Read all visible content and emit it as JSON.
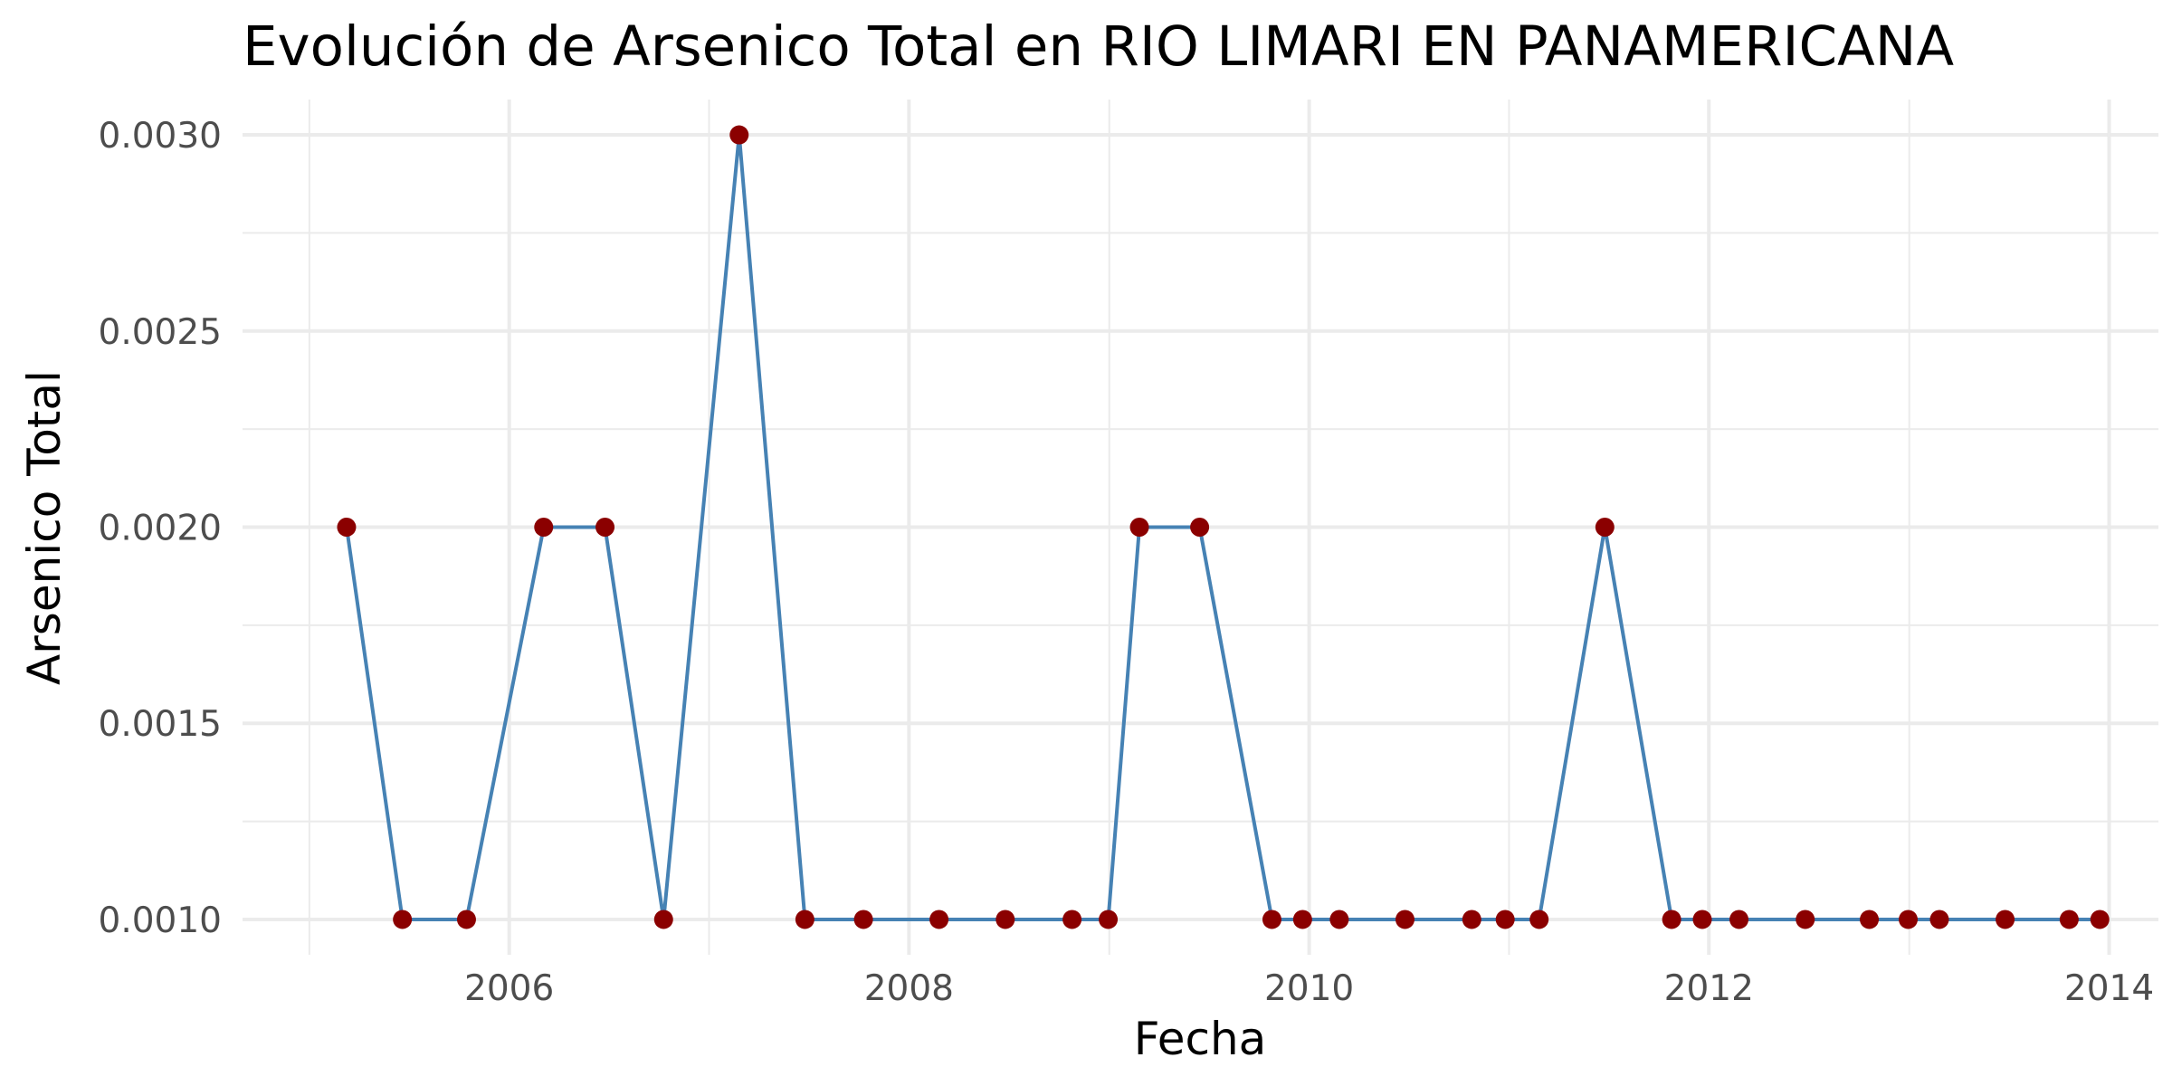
{
  "chart_data": {
    "type": "line",
    "title": "Evolución de Arsenico Total en RIO LIMARI EN PANAMERICANA",
    "xlabel": "Fecha",
    "ylabel": "Arsenico Total",
    "xlim": [
      "2004-09-01",
      "2014-04-01"
    ],
    "ylim": [
      0.00091,
      0.00309
    ],
    "x_ticks": [
      {
        "label": "2006",
        "date": "2006-01-01"
      },
      {
        "label": "2008",
        "date": "2008-01-01"
      },
      {
        "label": "2010",
        "date": "2010-01-01"
      },
      {
        "label": "2012",
        "date": "2012-01-01"
      },
      {
        "label": "2014",
        "date": "2014-01-01"
      }
    ],
    "x_minor_ticks": [
      "2005-01-01",
      "2007-01-01",
      "2009-01-01",
      "2011-01-01",
      "2013-01-01"
    ],
    "y_ticks": [
      {
        "label": "0.0010",
        "value": 0.001
      },
      {
        "label": "0.0015",
        "value": 0.0015
      },
      {
        "label": "0.0020",
        "value": 0.002
      },
      {
        "label": "0.0025",
        "value": 0.0025
      },
      {
        "label": "0.0030",
        "value": 0.003
      }
    ],
    "y_minor_ticks": [
      0.00125,
      0.00175,
      0.00225,
      0.00275
    ],
    "grid": true,
    "legend": "none",
    "line_color": "#4682b4",
    "point_color": "#8b0000",
    "series": [
      {
        "x": [
          "2005-03-10",
          "2005-06-20",
          "2005-10-15",
          "2006-03-05",
          "2006-06-25",
          "2006-10-10",
          "2007-02-25",
          "2007-06-25",
          "2007-10-10",
          "2008-02-25",
          "2008-06-25",
          "2008-10-25",
          "2008-12-30",
          "2009-02-25",
          "2009-06-15",
          "2009-10-25",
          "2009-12-20",
          "2010-02-25",
          "2010-06-25",
          "2010-10-25",
          "2010-12-25",
          "2011-02-25",
          "2011-06-25",
          "2011-10-25",
          "2011-12-20",
          "2012-02-25",
          "2012-06-25",
          "2012-10-20",
          "2012-12-30",
          "2013-02-25",
          "2013-06-25",
          "2013-10-20",
          "2013-12-15"
        ],
        "y": [
          0.002,
          0.001,
          0.001,
          0.002,
          0.002,
          0.001,
          0.003,
          0.001,
          0.001,
          0.001,
          0.001,
          0.001,
          0.001,
          0.002,
          0.002,
          0.001,
          0.001,
          0.001,
          0.001,
          0.001,
          0.001,
          0.001,
          0.002,
          0.001,
          0.001,
          0.001,
          0.001,
          0.001,
          0.001,
          0.001,
          0.001,
          0.001,
          0.001
        ]
      }
    ]
  }
}
